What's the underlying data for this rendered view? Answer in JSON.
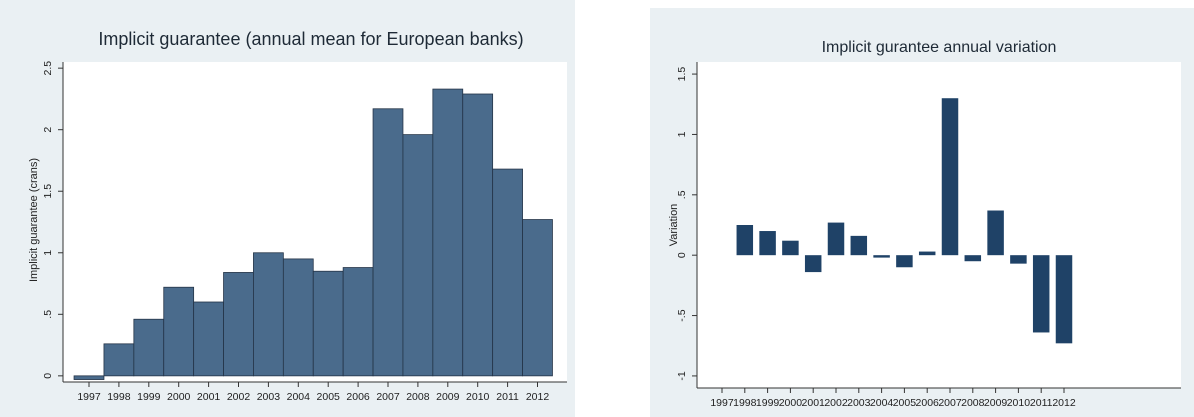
{
  "chart_data": [
    {
      "type": "bar",
      "title": "Implicit guarantee (annual mean for European banks)",
      "xlabel": "",
      "ylabel": "Implicit guarantee (crans)",
      "categories": [
        "1997",
        "1998",
        "1999",
        "2000",
        "2001",
        "2002",
        "2003",
        "2004",
        "2005",
        "2006",
        "2007",
        "2008",
        "2009",
        "2010",
        "2011",
        "2012"
      ],
      "values": [
        -0.03,
        0.26,
        0.46,
        0.72,
        0.6,
        0.84,
        1.0,
        0.95,
        0.85,
        0.88,
        2.17,
        1.96,
        2.33,
        2.29,
        1.68,
        1.27
      ],
      "ylim": [
        -0.05,
        2.55
      ],
      "yticks": [
        0,
        0.5,
        1,
        1.5,
        2,
        2.5
      ],
      "ytick_labels": [
        "0",
        ".5",
        "1",
        "1.5",
        "2",
        "2.5"
      ],
      "colors": {
        "background": "#eaf0f3",
        "plot_area": "#ffffff",
        "bar": "#4a6b8c",
        "bar_edge": "#243447"
      },
      "grid": false
    },
    {
      "type": "bar",
      "title": "Implicit gurantee annual variation",
      "xlabel": "",
      "ylabel": "Variation",
      "categories": [
        "1997",
        "1998",
        "1999",
        "2000",
        "2001",
        "2002",
        "2003",
        "2004",
        "2005",
        "2006",
        "2007",
        "2008",
        "2009",
        "2010",
        "2011",
        "2012"
      ],
      "values": [
        0,
        0.25,
        0.2,
        0.12,
        -0.14,
        0.27,
        0.16,
        -0.02,
        -0.1,
        0.03,
        1.3,
        -0.05,
        0.37,
        -0.07,
        -0.64,
        -0.73
      ],
      "ylim": [
        -1.1,
        1.6
      ],
      "yticks": [
        -1,
        -0.5,
        0,
        0.5,
        1,
        1.5
      ],
      "ytick_labels": [
        "-1",
        "-.5",
        "0",
        ".5",
        "1",
        "1.5"
      ],
      "colors": {
        "background": "#eaf0f3",
        "plot_area": "#ffffff",
        "bar": "#1f4267"
      },
      "grid": false
    }
  ]
}
